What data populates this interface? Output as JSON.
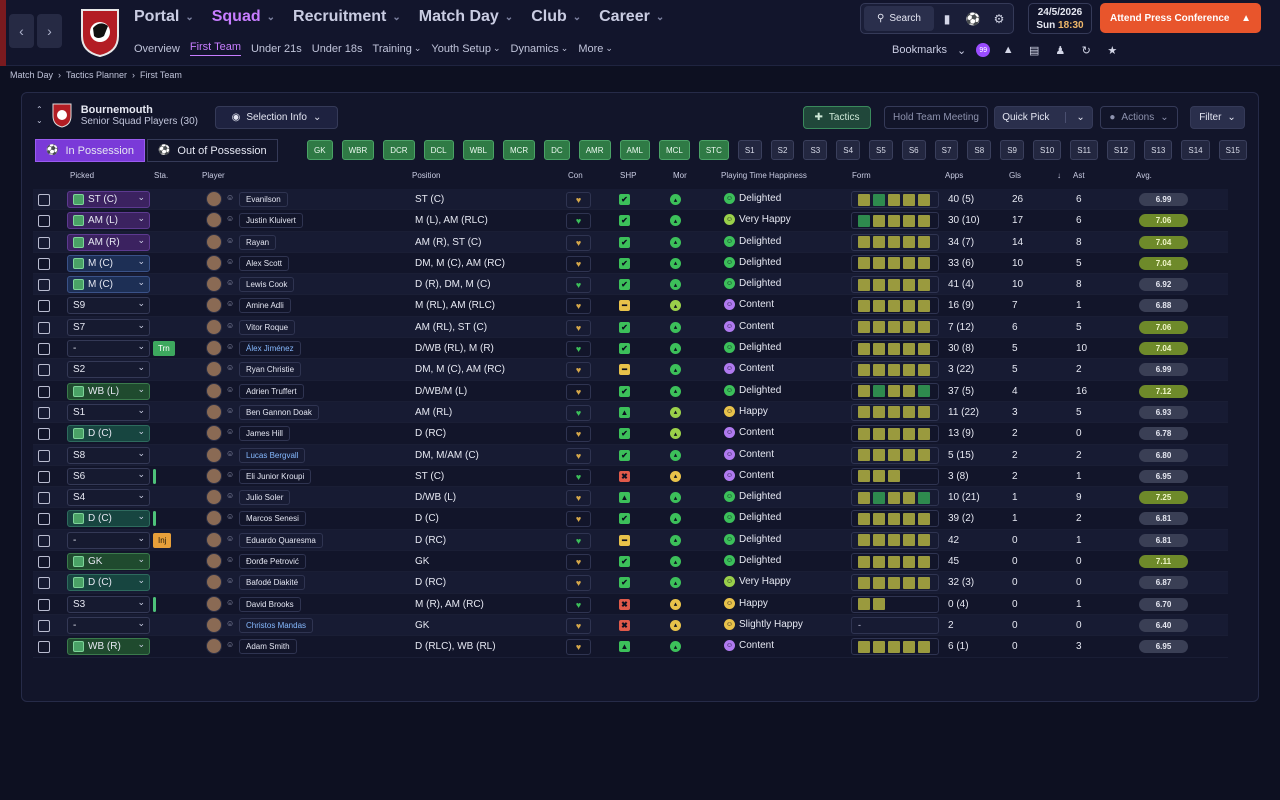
{
  "topbar": {
    "back_icon": "chevron-left-icon",
    "forward_icon": "chevron-right-icon",
    "main_nav": [
      {
        "label": "Portal",
        "active": false
      },
      {
        "label": "Squad",
        "active": true
      },
      {
        "label": "Recruitment",
        "active": false
      },
      {
        "label": "Match Day",
        "active": false
      },
      {
        "label": "Club",
        "active": false
      },
      {
        "label": "Career",
        "active": false
      }
    ],
    "sub_nav": [
      {
        "label": "Overview",
        "active": false
      },
      {
        "label": "First Team",
        "active": true
      },
      {
        "label": "Under 21s",
        "active": false
      },
      {
        "label": "Under 18s",
        "active": false
      },
      {
        "label": "Training",
        "active": false
      },
      {
        "label": "Youth Setup",
        "active": false
      },
      {
        "label": "Dynamics",
        "active": false
      },
      {
        "label": "More",
        "active": false
      }
    ],
    "search_label": "Search",
    "date": "24/5/2026",
    "day": "Sun",
    "time": "18:30",
    "press_button": "Attend Press Conference",
    "bookmarks_label": "Bookmarks",
    "notification_badge": "99"
  },
  "breadcrumb": [
    "Match Day",
    "Tactics Planner",
    "First Team"
  ],
  "team": {
    "name": "Bournemouth",
    "subtitle": "Senior Squad Players (30)"
  },
  "controls": {
    "selection_info": "Selection Info",
    "tactics": "Tactics",
    "hold_meeting": "Hold Team Meeting",
    "quick_pick": "Quick Pick",
    "actions": "Actions",
    "filter": "Filter"
  },
  "possession_tabs": [
    {
      "label": "In Possession",
      "active": true
    },
    {
      "label": "Out of Possession",
      "active": false
    }
  ],
  "position_slots": [
    {
      "label": "GK",
      "filled": true
    },
    {
      "label": "WBR",
      "filled": true
    },
    {
      "label": "DCR",
      "filled": true
    },
    {
      "label": "DCL",
      "filled": true
    },
    {
      "label": "WBL",
      "filled": true
    },
    {
      "label": "MCR",
      "filled": true
    },
    {
      "label": "DC",
      "filled": true
    },
    {
      "label": "AMR",
      "filled": true
    },
    {
      "label": "AML",
      "filled": true
    },
    {
      "label": "MCL",
      "filled": true
    },
    {
      "label": "STC",
      "filled": true
    },
    {
      "label": "S1",
      "filled": false
    },
    {
      "label": "S2",
      "filled": false
    },
    {
      "label": "S3",
      "filled": false
    },
    {
      "label": "S4",
      "filled": false
    },
    {
      "label": "S5",
      "filled": false
    },
    {
      "label": "S6",
      "filled": false
    },
    {
      "label": "S7",
      "filled": false
    },
    {
      "label": "S8",
      "filled": false
    },
    {
      "label": "S9",
      "filled": false
    },
    {
      "label": "S10",
      "filled": false
    },
    {
      "label": "S11",
      "filled": false
    },
    {
      "label": "S12",
      "filled": false
    },
    {
      "label": "S13",
      "filled": false
    },
    {
      "label": "S14",
      "filled": false
    },
    {
      "label": "S15",
      "filled": false
    }
  ],
  "columns": {
    "picked": "Picked",
    "sta": "Sta.",
    "player": "Player",
    "position": "Position",
    "con": "Con",
    "shp": "SHP",
    "mor": "Mor",
    "happiness": "Playing Time Happiness",
    "form": "Form",
    "apps": "Apps",
    "gls": "Gls",
    "ast": "Ast",
    "avg": "Avg."
  },
  "colors": {
    "accent": "#c77dff",
    "slot_filled": "#2f7a45",
    "press": "#e8552c",
    "form_green": "#2e8a4e",
    "form_olive": "#9a9a3e"
  },
  "players": [
    {
      "picked": "ST (C)",
      "pstyle": "purple",
      "sta": "",
      "name": "Evanilson",
      "loan": false,
      "position": "ST (C)",
      "shp": "ok",
      "mor": "good",
      "happiness": "Delighted",
      "form": [
        "o",
        "g",
        "o",
        "o",
        "o"
      ],
      "apps": "40 (5)",
      "gls": "26",
      "ast": "6",
      "avg": "6.99"
    },
    {
      "picked": "AM (L)",
      "pstyle": "purple",
      "sta": "",
      "name": "Justin Kluivert",
      "loan": false,
      "position": "M (L), AM (RLC)",
      "shp": "ok",
      "mor": "good",
      "happiness": "Very Happy",
      "form": [
        "g",
        "o",
        "o",
        "o",
        "o"
      ],
      "apps": "30 (10)",
      "gls": "17",
      "ast": "6",
      "avg": "7.06"
    },
    {
      "picked": "AM (R)",
      "pstyle": "purple",
      "sta": "",
      "name": "Rayan",
      "loan": false,
      "position": "AM (R), ST (C)",
      "shp": "ok",
      "mor": "good",
      "happiness": "Delighted",
      "form": [
        "o",
        "o",
        "o",
        "o",
        "o"
      ],
      "apps": "34 (7)",
      "gls": "14",
      "ast": "8",
      "avg": "7.04"
    },
    {
      "picked": "M (C)",
      "pstyle": "blue",
      "sta": "",
      "name": "Alex Scott",
      "loan": false,
      "position": "DM, M (C), AM (RC)",
      "shp": "ok",
      "mor": "good",
      "happiness": "Delighted",
      "form": [
        "o",
        "o",
        "o",
        "o",
        "o"
      ],
      "apps": "33 (6)",
      "gls": "10",
      "ast": "5",
      "avg": "7.04"
    },
    {
      "picked": "M (C)",
      "pstyle": "blue",
      "sta": "",
      "name": "Lewis Cook",
      "loan": false,
      "position": "D (R), DM, M (C)",
      "shp": "ok",
      "mor": "good",
      "happiness": "Delighted",
      "form": [
        "o",
        "o",
        "o",
        "o",
        "o"
      ],
      "apps": "41 (4)",
      "gls": "10",
      "ast": "8",
      "avg": "6.92"
    },
    {
      "picked": "S9",
      "pstyle": "none",
      "sta": "",
      "name": "Amine Adli",
      "loan": false,
      "position": "M (RL), AM (RLC)",
      "shp": "warn",
      "mor": "ok",
      "happiness": "Content",
      "form": [
        "o",
        "o",
        "o",
        "o",
        "o"
      ],
      "apps": "16 (9)",
      "gls": "7",
      "ast": "1",
      "avg": "6.88"
    },
    {
      "picked": "S7",
      "pstyle": "none",
      "sta": "",
      "name": "Vitor Roque",
      "loan": false,
      "position": "AM (RL), ST (C)",
      "shp": "ok",
      "mor": "good",
      "happiness": "Content",
      "form": [
        "o",
        "o",
        "o",
        "o",
        "o"
      ],
      "apps": "7 (12)",
      "gls": "6",
      "ast": "5",
      "avg": "7.06"
    },
    {
      "picked": "-",
      "pstyle": "none",
      "sta": "Trn",
      "name": "Álex Jiménez",
      "loan": true,
      "position": "D/WB (RL), M (R)",
      "shp": "ok",
      "mor": "good",
      "happiness": "Delighted",
      "form": [
        "o",
        "o",
        "o",
        "o",
        "o"
      ],
      "apps": "30 (8)",
      "gls": "5",
      "ast": "10",
      "avg": "7.04"
    },
    {
      "picked": "S2",
      "pstyle": "none",
      "sta": "",
      "name": "Ryan Christie",
      "loan": false,
      "position": "DM, M (C), AM (RC)",
      "shp": "warn",
      "mor": "good",
      "happiness": "Content",
      "form": [
        "o",
        "o",
        "o",
        "o",
        "o"
      ],
      "apps": "3 (22)",
      "gls": "5",
      "ast": "2",
      "avg": "6.99"
    },
    {
      "picked": "WB (L)",
      "pstyle": "green",
      "sta": "",
      "name": "Adrien Truffert",
      "loan": false,
      "position": "D/WB/M (L)",
      "shp": "ok",
      "mor": "good",
      "happiness": "Delighted",
      "form": [
        "o",
        "g",
        "o",
        "o",
        "g"
      ],
      "apps": "37 (5)",
      "gls": "4",
      "ast": "16",
      "avg": "7.12"
    },
    {
      "picked": "S1",
      "pstyle": "none",
      "sta": "",
      "name": "Ben Gannon Doak",
      "loan": false,
      "position": "AM (RL)",
      "shp": "up",
      "mor": "ok",
      "happiness": "Happy",
      "form": [
        "o",
        "o",
        "o",
        "o",
        "o"
      ],
      "apps": "11 (22)",
      "gls": "3",
      "ast": "5",
      "avg": "6.93"
    },
    {
      "picked": "D (C)",
      "pstyle": "teal",
      "sta": "",
      "name": "James Hill",
      "loan": false,
      "position": "D (RC)",
      "shp": "ok",
      "mor": "ok",
      "happiness": "Content",
      "form": [
        "o",
        "o",
        "o",
        "o",
        "o"
      ],
      "apps": "13 (9)",
      "gls": "2",
      "ast": "0",
      "avg": "6.78"
    },
    {
      "picked": "S8",
      "pstyle": "none",
      "sta": "",
      "name": "Lucas Bergvall",
      "loan": true,
      "position": "DM, M/AM (C)",
      "shp": "ok",
      "mor": "good",
      "happiness": "Content",
      "form": [
        "o",
        "o",
        "o",
        "o",
        "o"
      ],
      "apps": "5 (15)",
      "gls": "2",
      "ast": "2",
      "avg": "6.80"
    },
    {
      "picked": "S6",
      "pstyle": "none",
      "sta": "bar",
      "name": "Eli Junior Kroupi",
      "loan": false,
      "position": "ST (C)",
      "shp": "bad",
      "mor": "neutral",
      "happiness": "Content",
      "form": [
        "o",
        "o",
        "o"
      ],
      "apps": "3 (8)",
      "gls": "2",
      "ast": "1",
      "avg": "6.95"
    },
    {
      "picked": "S4",
      "pstyle": "none",
      "sta": "",
      "name": "Julio Soler",
      "loan": false,
      "position": "D/WB (L)",
      "shp": "up",
      "mor": "good",
      "happiness": "Delighted",
      "form": [
        "o",
        "g",
        "o",
        "o",
        "g"
      ],
      "apps": "10 (21)",
      "gls": "1",
      "ast": "9",
      "avg": "7.25"
    },
    {
      "picked": "D (C)",
      "pstyle": "teal",
      "sta": "bar",
      "name": "Marcos Senesi",
      "loan": false,
      "position": "D (C)",
      "shp": "ok",
      "mor": "good",
      "happiness": "Delighted",
      "form": [
        "o",
        "o",
        "o",
        "o",
        "o"
      ],
      "apps": "39 (2)",
      "gls": "1",
      "ast": "2",
      "avg": "6.81"
    },
    {
      "picked": "-",
      "pstyle": "none",
      "sta": "Inj",
      "name": "Eduardo Quaresma",
      "loan": false,
      "position": "D (RC)",
      "shp": "warn",
      "mor": "good",
      "happiness": "Delighted",
      "form": [
        "o",
        "o",
        "o",
        "o",
        "o"
      ],
      "apps": "42",
      "gls": "0",
      "ast": "1",
      "avg": "6.81"
    },
    {
      "picked": "GK",
      "pstyle": "green",
      "sta": "",
      "name": "Đorđe Petrović",
      "loan": false,
      "position": "GK",
      "shp": "ok",
      "mor": "good",
      "happiness": "Delighted",
      "form": [
        "o",
        "o",
        "o",
        "o",
        "o"
      ],
      "apps": "45",
      "gls": "0",
      "ast": "0",
      "avg": "7.11"
    },
    {
      "picked": "D (C)",
      "pstyle": "teal",
      "sta": "",
      "name": "Bafodé Diakité",
      "loan": false,
      "position": "D (RC)",
      "shp": "ok",
      "mor": "good",
      "happiness": "Very Happy",
      "form": [
        "o",
        "o",
        "o",
        "o",
        "o"
      ],
      "apps": "32 (3)",
      "gls": "0",
      "ast": "0",
      "avg": "6.87"
    },
    {
      "picked": "S3",
      "pstyle": "none",
      "sta": "bar",
      "name": "David Brooks",
      "loan": false,
      "position": "M (R), AM (RC)",
      "shp": "bad",
      "mor": "neutral",
      "happiness": "Happy",
      "form": [
        "o",
        "o"
      ],
      "apps": "0 (4)",
      "gls": "0",
      "ast": "1",
      "avg": "6.70"
    },
    {
      "picked": "-",
      "pstyle": "none",
      "sta": "",
      "name": "Christos Mandas",
      "loan": true,
      "position": "GK",
      "shp": "bad",
      "mor": "neutral",
      "happiness": "Slightly Happy",
      "form": [],
      "form_empty": "-",
      "apps": "2",
      "gls": "0",
      "ast": "0",
      "avg": "6.40"
    },
    {
      "picked": "WB (R)",
      "pstyle": "green",
      "sta": "",
      "name": "Adam Smith",
      "loan": false,
      "position": "D (RLC), WB (RL)",
      "shp": "up",
      "mor": "good",
      "happiness": "Content",
      "form": [
        "o",
        "o",
        "o",
        "o",
        "o"
      ],
      "apps": "6 (1)",
      "gls": "0",
      "ast": "3",
      "avg": "6.95"
    }
  ]
}
